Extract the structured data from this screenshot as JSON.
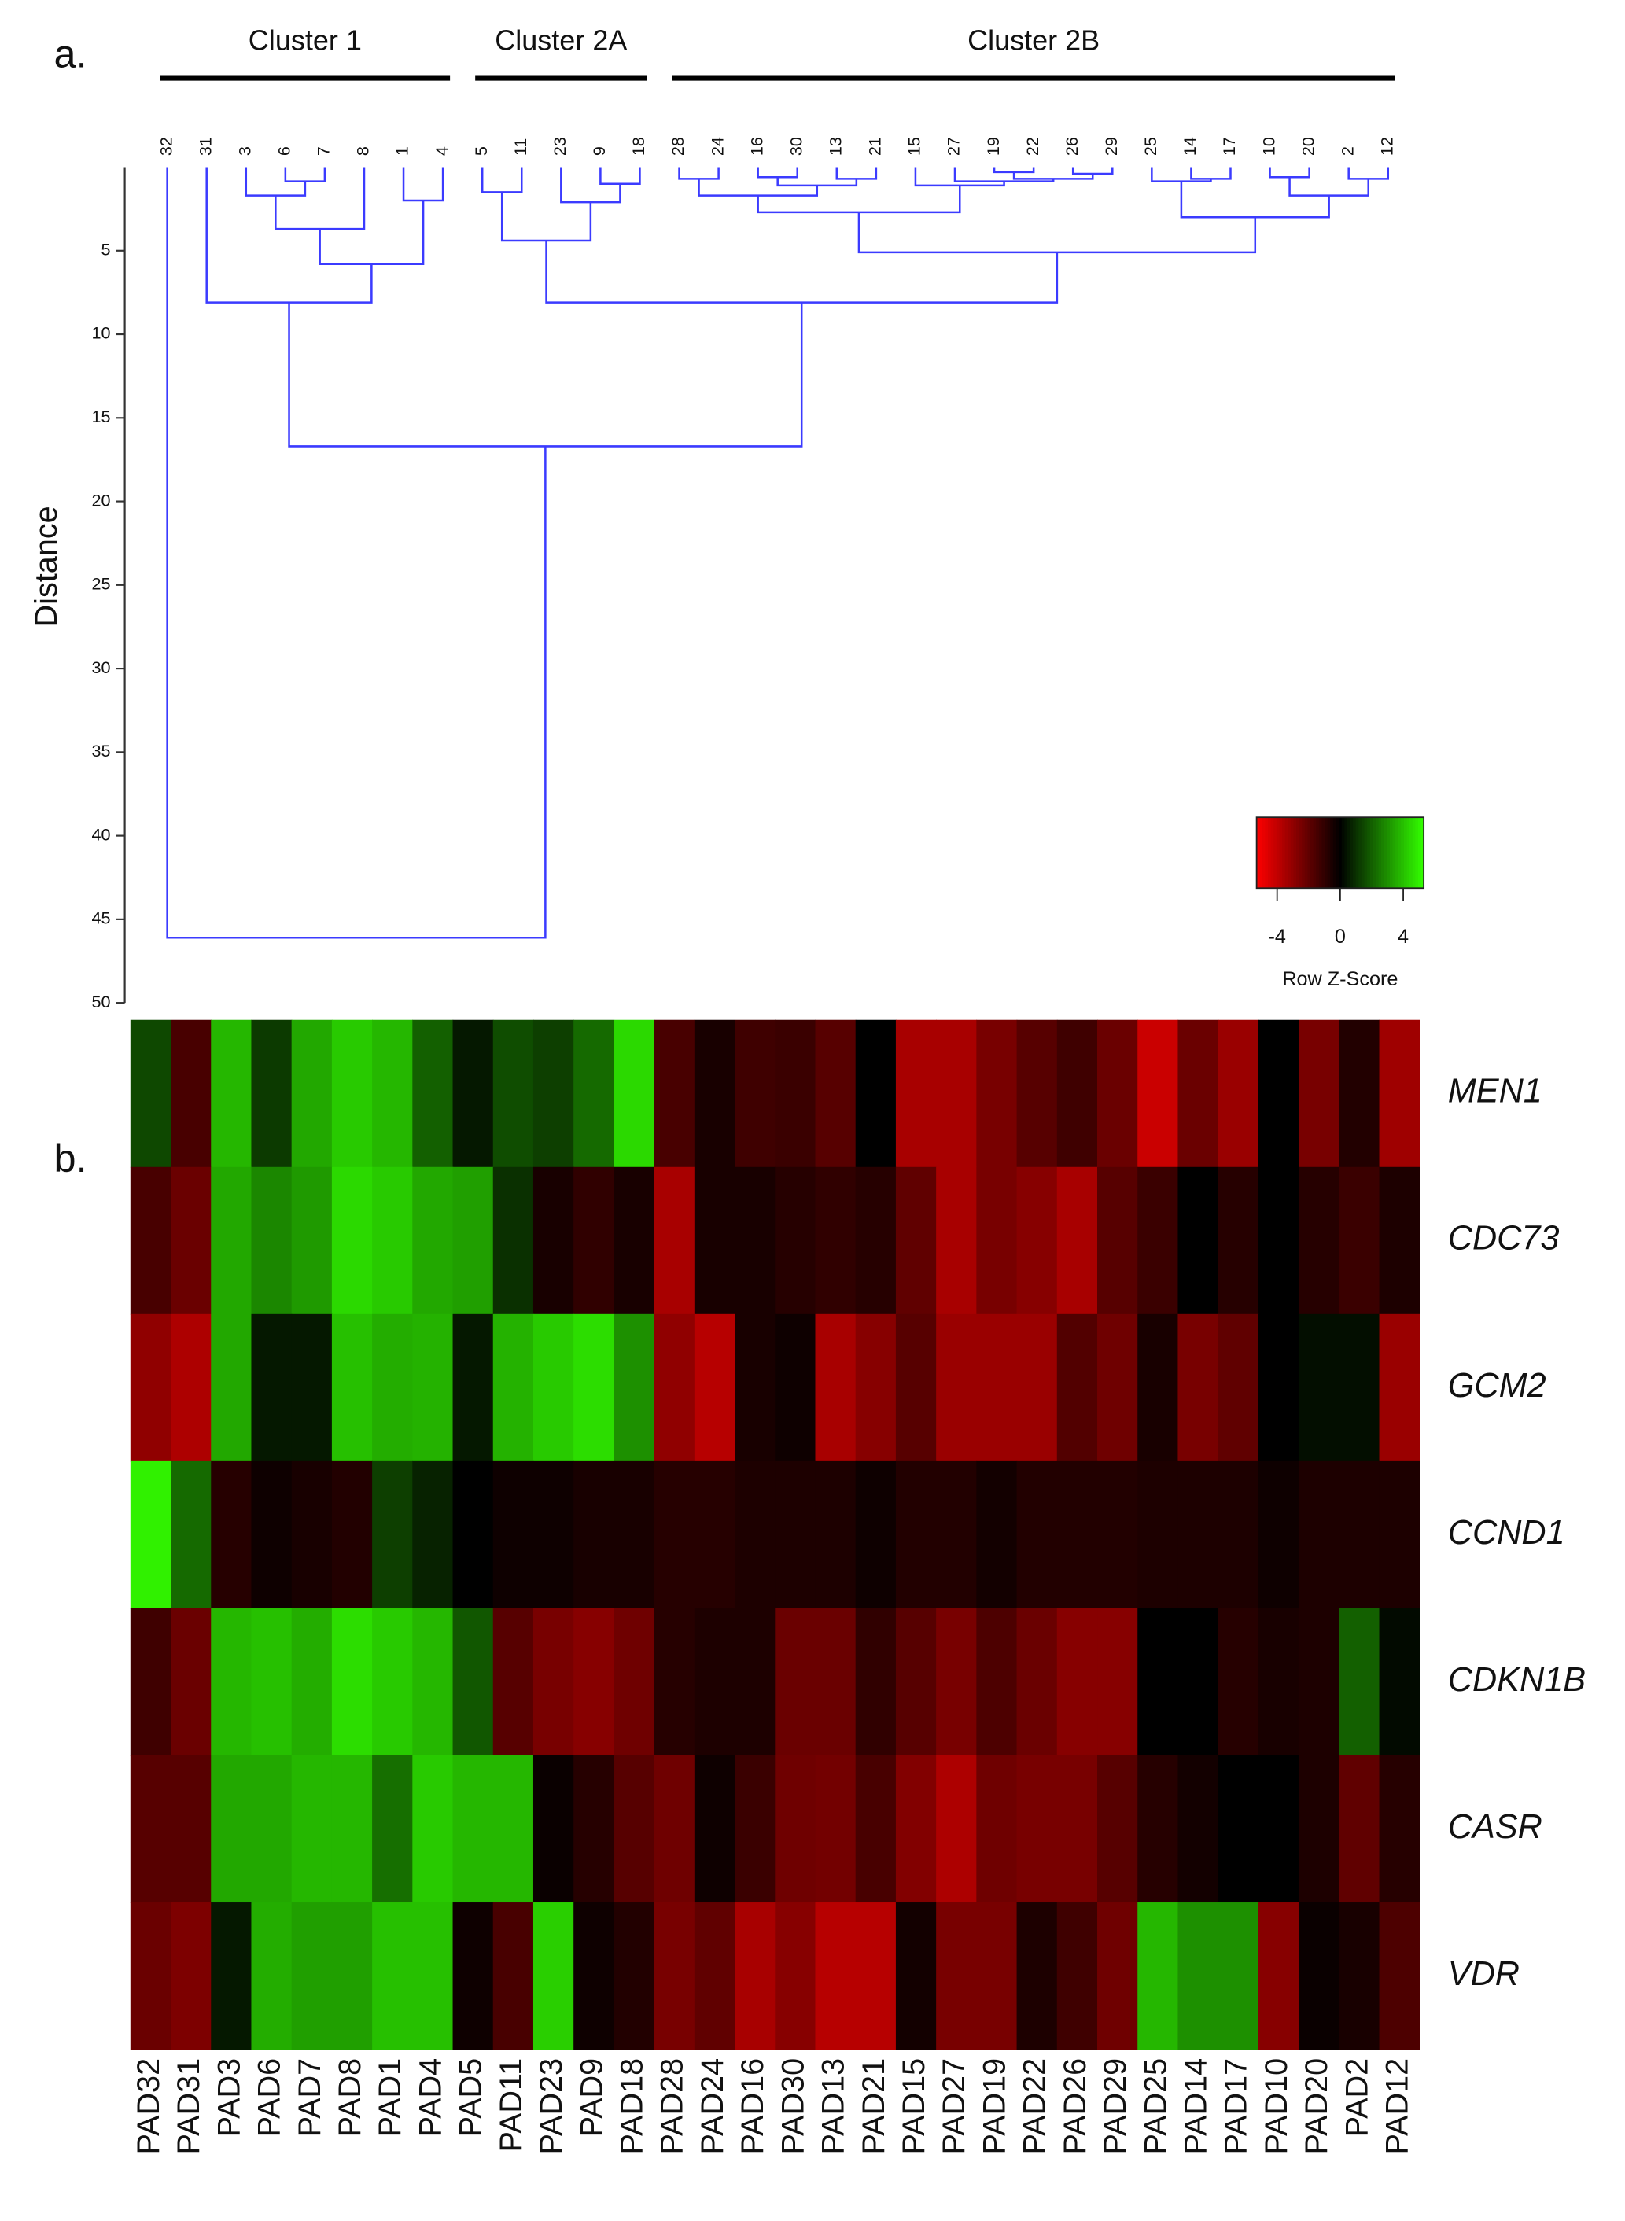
{
  "chart_data": {
    "type": "dendrogram-heatmap",
    "panel_labels": [
      "a.",
      "b."
    ],
    "clusters": [
      "Cluster 1",
      "Cluster 2A",
      "Cluster 2B"
    ],
    "leaves": [
      "32",
      "31",
      "3",
      "6",
      "7",
      "8",
      "1",
      "4",
      "5",
      "11",
      "23",
      "9",
      "18",
      "28",
      "24",
      "16",
      "30",
      "13",
      "21",
      "15",
      "27",
      "19",
      "22",
      "26",
      "29",
      "25",
      "14",
      "17",
      "10",
      "20",
      "2",
      "12"
    ],
    "gap_heights": [
      46.1,
      8.1,
      1.7,
      0.85,
      3.7,
      5.8,
      2.0,
      16.7,
      1.5,
      4.4,
      2.1,
      1.0,
      8.1,
      0.7,
      1.7,
      0.6,
      1.1,
      0.7,
      2.7,
      1.1,
      0.85,
      0.3,
      0.7,
      0.4,
      5.1,
      0.85,
      0.7,
      3.0,
      0.6,
      1.7,
      0.7
    ],
    "dendrogram_color": "#3b3bff",
    "ylabel": "Distance",
    "ylim": [
      0,
      50
    ],
    "yticks": [
      5,
      10,
      15,
      20,
      25,
      30,
      35,
      40,
      45,
      50
    ],
    "heatmap": {
      "rows": [
        "MEN1",
        "CDC73",
        "GCM2",
        "CCND1",
        "CDKN1B",
        "CASR",
        "VDR"
      ],
      "columns": [
        "PAD32",
        "PAD31",
        "PAD3",
        "PAD6",
        "PAD7",
        "PAD8",
        "PAD1",
        "PAD4",
        "PAD5",
        "PAD11",
        "PAD23",
        "PAD9",
        "PAD18",
        "PAD28",
        "PAD24",
        "PAD16",
        "PAD30",
        "PAD13",
        "PAD21",
        "PAD15",
        "PAD27",
        "PAD19",
        "PAD22",
        "PAD26",
        "PAD29",
        "PAD25",
        "PAD14",
        "PAD17",
        "PAD10",
        "PAD20",
        "PAD2",
        "PAD12"
      ],
      "values": [
        [
          1.5,
          -1.5,
          3.8,
          1.2,
          3.5,
          4.2,
          3.8,
          2.0,
          0.5,
          1.6,
          1.3,
          2.2,
          4.5,
          -1.5,
          -0.5,
          -1.3,
          -1.2,
          -1.8,
          0,
          -3.5,
          -3.5,
          -2.5,
          -1.8,
          -1.3,
          -2.2,
          -4.2,
          -2.2,
          -3.2,
          0,
          -2.5,
          -0.7,
          -3.3
        ],
        [
          -1.5,
          -2.2,
          3.5,
          2.8,
          3.2,
          4.5,
          4.2,
          3.5,
          3.3,
          1.0,
          -0.5,
          -1.0,
          -0.5,
          -3.5,
          -0.5,
          -0.5,
          -0.8,
          -1.0,
          -0.8,
          -2.0,
          -3.5,
          -2.5,
          -2.8,
          -3.5,
          -1.8,
          -1.2,
          0,
          -0.8,
          0,
          -0.8,
          -1.2,
          -0.6
        ],
        [
          -3.0,
          -3.6,
          3.5,
          0.5,
          0.5,
          4.0,
          3.6,
          3.7,
          0.5,
          3.7,
          4.2,
          4.6,
          3.0,
          -3.0,
          -3.8,
          -0.5,
          -0.3,
          -3.5,
          -2.8,
          -1.8,
          -3.2,
          -3.2,
          -3.2,
          -1.7,
          -2.3,
          -0.5,
          -2.5,
          -2.0,
          0,
          0.3,
          0.3,
          -3.2
        ],
        [
          5.0,
          2.2,
          -0.8,
          -0.3,
          -0.5,
          -0.7,
          1.3,
          0.7,
          0,
          -0.3,
          -0.3,
          -0.5,
          -0.5,
          -0.8,
          -0.8,
          -0.6,
          -0.6,
          -0.6,
          -0.3,
          -0.7,
          -0.7,
          -0.4,
          -0.7,
          -0.7,
          -0.7,
          -0.6,
          -0.6,
          -0.6,
          -0.3,
          -0.6,
          -0.6,
          -0.6
        ],
        [
          -1.3,
          -2.2,
          3.8,
          4.0,
          3.6,
          4.6,
          4.2,
          3.8,
          1.8,
          -1.8,
          -2.5,
          -2.8,
          -2.3,
          -0.8,
          -0.6,
          -0.6,
          -2.2,
          -2.2,
          -1.0,
          -1.8,
          -2.5,
          -1.6,
          -2.2,
          -2.8,
          -2.8,
          0,
          0,
          -0.8,
          -0.5,
          -0.6,
          2.0,
          0.2
        ],
        [
          -1.8,
          -1.8,
          3.5,
          3.5,
          3.8,
          3.8,
          2.3,
          4.2,
          3.8,
          3.8,
          -0.2,
          -0.8,
          -1.8,
          -2.3,
          -0.3,
          -1.2,
          -2.3,
          -2.4,
          -1.5,
          -2.7,
          -3.6,
          -2.3,
          -2.5,
          -2.5,
          -1.8,
          -0.8,
          -0.4,
          0,
          0,
          -0.6,
          -2.0,
          -0.8
        ],
        [
          -2.2,
          -2.6,
          0.5,
          3.6,
          3.3,
          3.3,
          4.0,
          4.0,
          -0.3,
          -1.5,
          4.3,
          -0.3,
          -0.7,
          -2.5,
          -2.0,
          -3.5,
          -2.8,
          -3.8,
          -3.8,
          -0.4,
          -2.5,
          -2.5,
          -0.6,
          -1.3,
          -2.3,
          3.8,
          3.0,
          3.0,
          -2.8,
          -0.2,
          -0.5,
          -1.6
        ]
      ]
    },
    "colorbar": {
      "lim": [
        -5.3,
        5.3
      ],
      "ticks": [
        -4,
        0,
        4
      ],
      "label": "Row Z-Score",
      "colors": [
        "#ff0000",
        "#000000",
        "#33ff00"
      ]
    }
  }
}
